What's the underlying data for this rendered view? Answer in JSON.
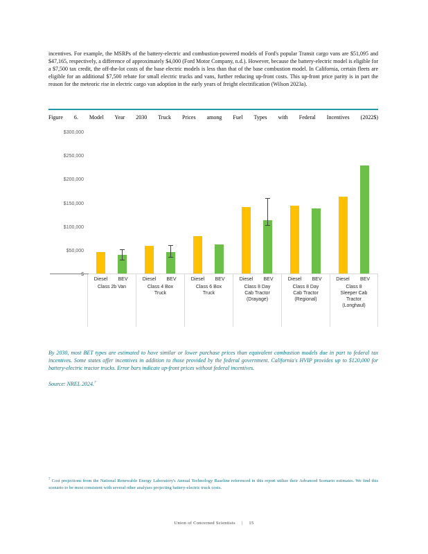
{
  "page": {
    "body_paragraph": "incentives. For example, the MSRPs of the battery-electric and combustion-powered models of Ford's popular Transit cargo vans are $51,095 and $47,165, respectively, a difference of approximately $4,000 (Ford Motor Company, n.d.). However, because the battery-electric model is eligible for a $7,500 tax credit, the off-the-lot costs of the base electric models is less than that of the base combustion model. In California, certain fleets are eligible for an additional $7,500 rebate for small electric trucks and vans, further reducing up-front costs. This up-front price parity is in part the reason for the meteoric rise in electric cargo van adoption in the early years of freight electrification (Wilson 2023a).",
    "figure_title": "Figure 6. Model Year 2030 Truck Prices among Fuel Types with Federal Incentives (2022$)",
    "figure_caption": "By 2030, most BET types are estimated to have similar or lower purchase prices than equivalent combustion models due in part to federal tax incentives. Some states offer incentives in addition to those provided by the federal government. California's HVIP provides up to $120,000 for battery-electric tractor trucks. Error bars indicate up-front prices without federal incentives.",
    "source_line": "Source: NREL 2024.",
    "footnote_marker": "7",
    "footnote": "Cost projections from the National Renewable Energy Laboratory's Annual Technology Baseline referenced in this report utilize their Advanced Scenario estimates. We find this scenario to be most consistent with several other analyses projecting battery-electric truck costs.",
    "footer": {
      "org": "Union of Concerned Scientists",
      "separator": "|",
      "page_number": "15"
    }
  },
  "colors": {
    "accent_teal": "#0f7482",
    "rule_teal": "#1f98a8",
    "diesel_bar": "#ffc000",
    "bev_bar": "#6cc04a",
    "axis_text": "#595959",
    "error_bar": "#404040"
  },
  "chart_data": {
    "type": "bar",
    "title": "Figure 6. Model Year 2030 Truck Prices among Fuel Types with Federal Incentives (2022$)",
    "xlabel": "",
    "ylabel": "",
    "ylim": [
      0,
      300000
    ],
    "ytick_step": 50000,
    "ytick_labels": [
      "$",
      "$50,000",
      "$100,000",
      "$150,000",
      "$200,000",
      "$250,000",
      "$300,000"
    ],
    "grid": false,
    "legend_position": "none",
    "series": [
      "Diesel",
      "BEV"
    ],
    "groups": [
      {
        "label": "Class 2b Van",
        "label_lines": [
          "Class 2b Van"
        ],
        "diesel": 46000,
        "bev": 39000,
        "bev_error_high": 51000
      },
      {
        "label": "Class 4 Box Truck",
        "label_lines": [
          "Class 4 Box",
          "Truck"
        ],
        "diesel": 58000,
        "bev": 45000,
        "bev_error_high": 60000
      },
      {
        "label": "Class 6 Box Truck",
        "label_lines": [
          "Class 6 Box",
          "Truck"
        ],
        "diesel": 79000,
        "bev": 61000,
        "bev_error_high": null
      },
      {
        "label": "Class 8 Day Cab Tractor (Drayage)",
        "label_lines": [
          "Class 8 Day",
          "Cab Tractor",
          "(Drayage)"
        ],
        "diesel": 140000,
        "bev": 113000,
        "bev_error_high": 160000
      },
      {
        "label": "Class 8 Day Cab Tractor (Regional)",
        "label_lines": [
          "Class 8 Day",
          "Cab Tractor",
          "(Regional)"
        ],
        "diesel": 143000,
        "bev": 138000,
        "bev_error_high": null
      },
      {
        "label": "Class 8 Sleeper Cab Tractor (Longhaul)",
        "label_lines": [
          "Class 8",
          "Sleeper Cab",
          "Tractor",
          "(Longhaul)"
        ],
        "diesel": 163000,
        "bev": 229000,
        "bev_error_high": null
      }
    ]
  }
}
